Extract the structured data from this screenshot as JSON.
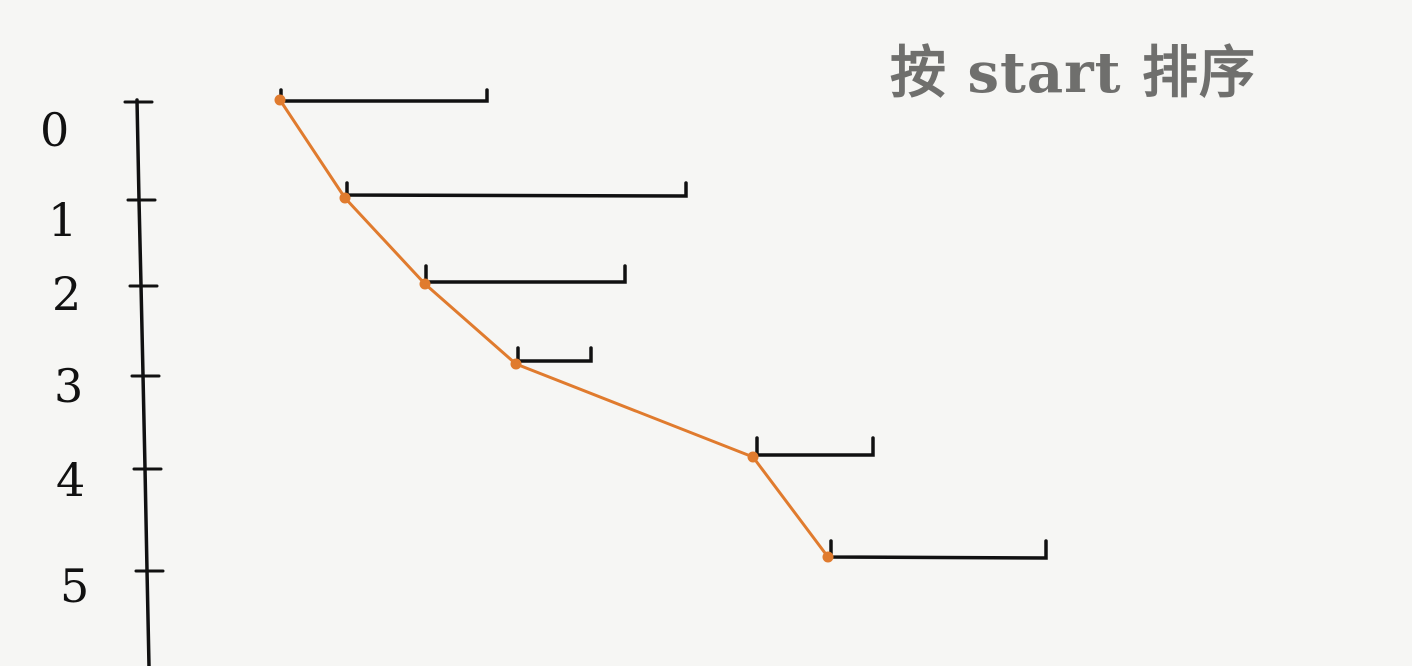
{
  "title": "按 start 排序",
  "colors": {
    "background": "#f6f6f4",
    "interval": "#111111",
    "path": "#e07b2e",
    "title": "#6f6f6d"
  },
  "row_labels": [
    "0",
    "1",
    "2",
    "3",
    "4",
    "5"
  ],
  "intervals": [
    {
      "row": "0"
    },
    {
      "row": "1"
    },
    {
      "row": "2"
    },
    {
      "row": "3"
    },
    {
      "row": "4"
    },
    {
      "row": "5"
    }
  ]
}
